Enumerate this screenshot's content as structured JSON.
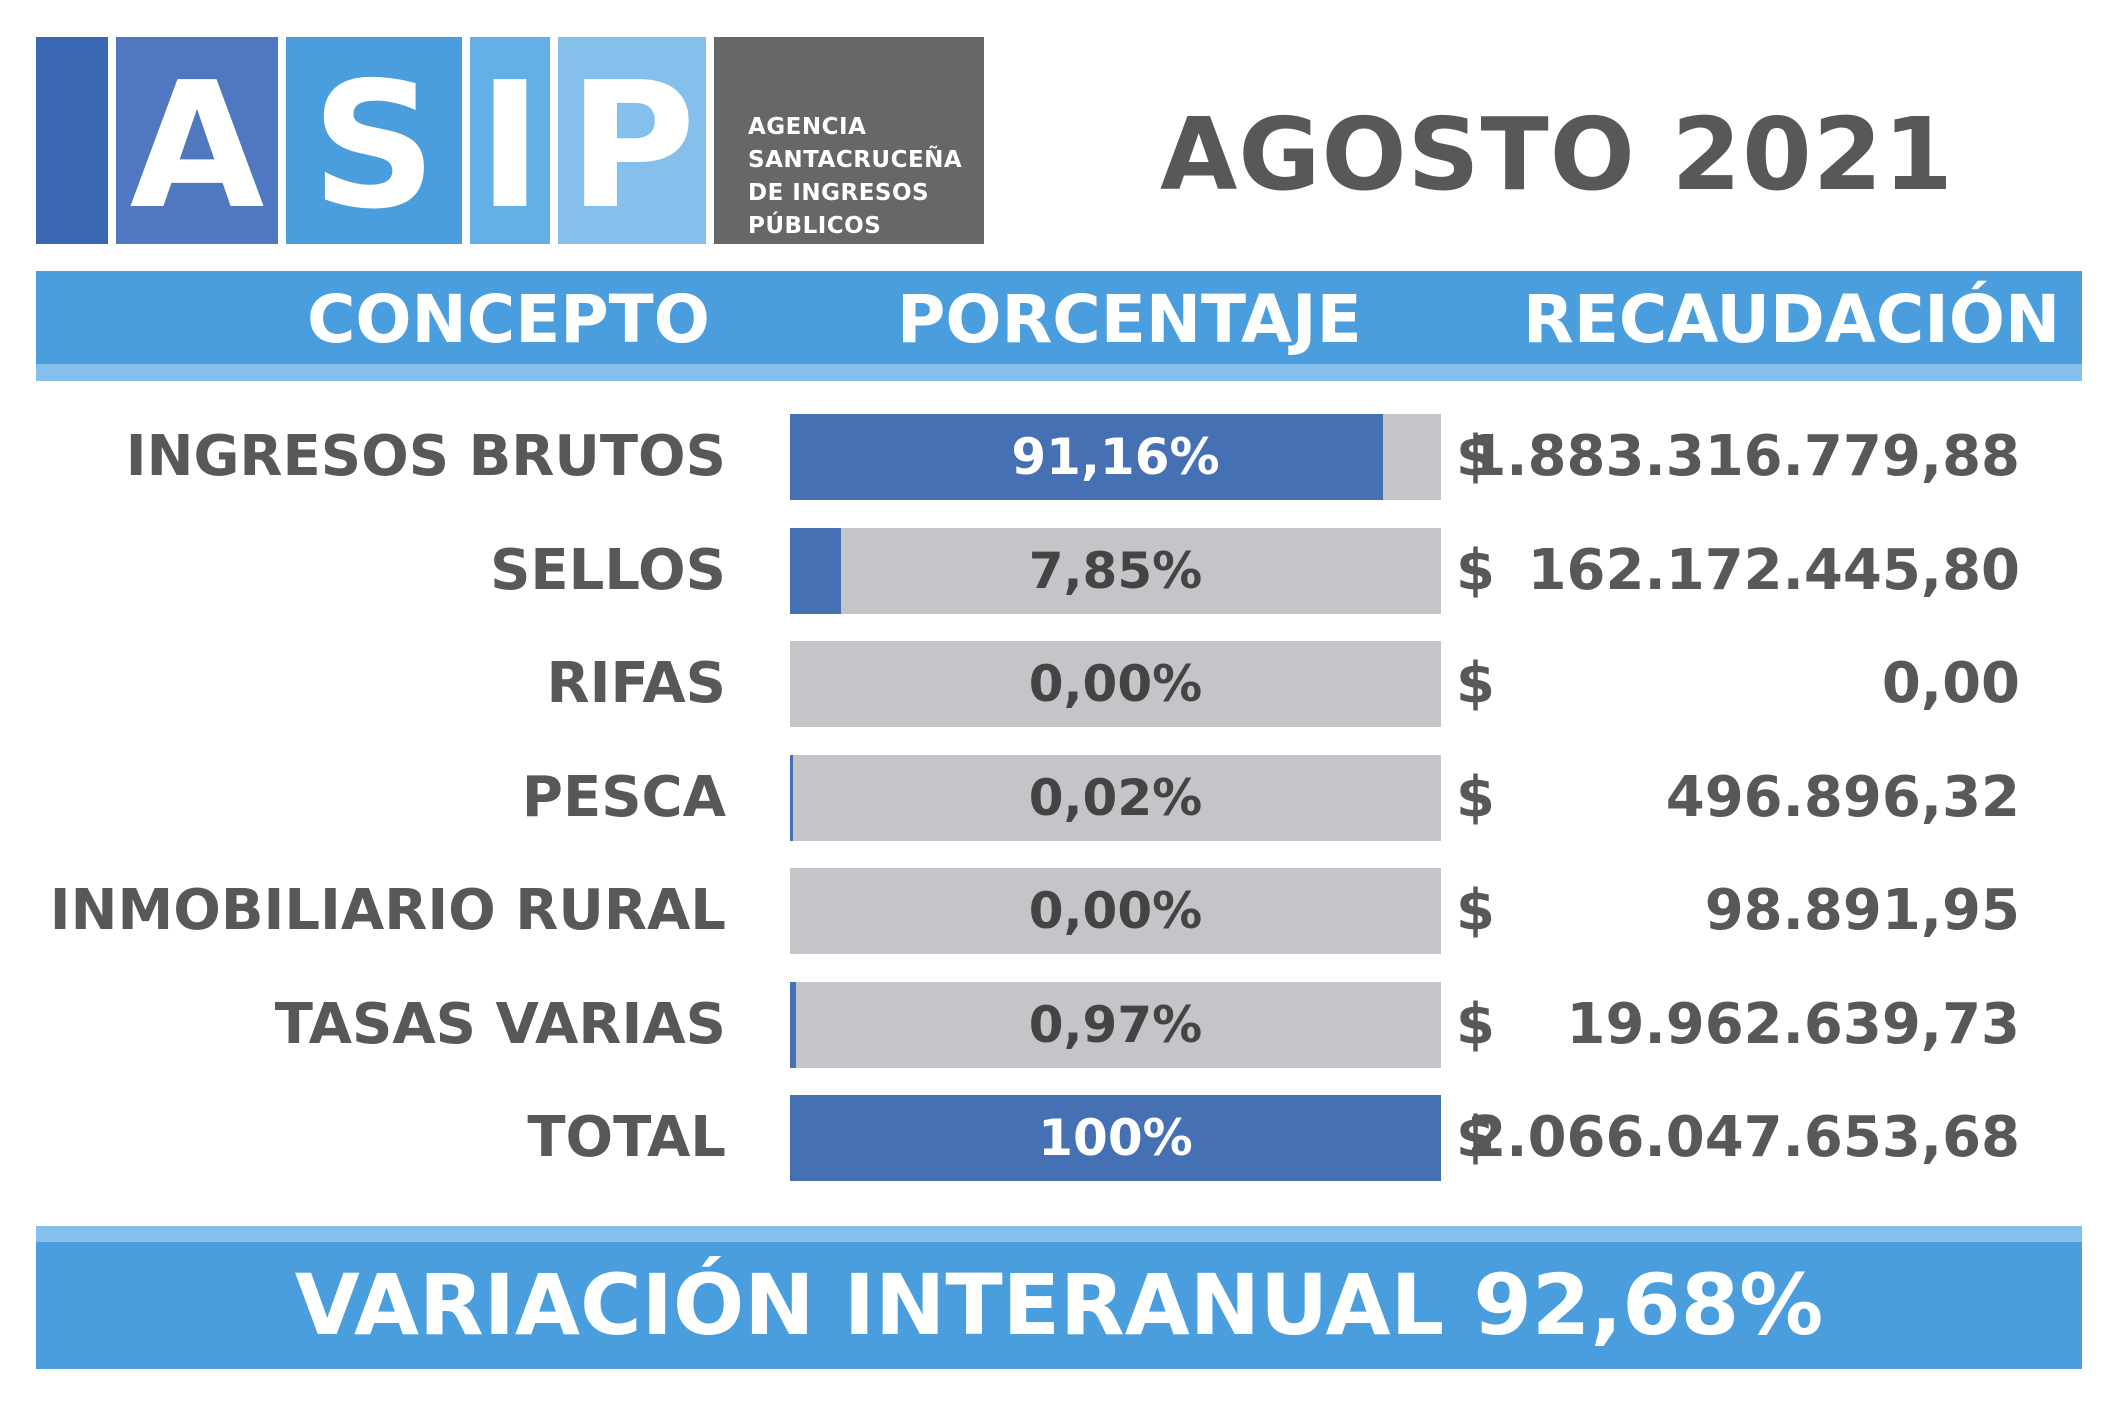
{
  "logo": {
    "letters": [
      "A",
      "S",
      "I",
      "P"
    ],
    "subtitle_lines": [
      "AGENCIA",
      "SANTACRUCEÑA",
      "DE INGRESOS",
      "PÚBLICOS"
    ]
  },
  "period": "AGOSTO 2021",
  "headers": {
    "concepto": "CONCEPTO",
    "porcentaje": "PORCENTAJE",
    "recaudacion": "RECAUDACIÓN"
  },
  "colors": {
    "bar_fill": "#4570b4",
    "bar_track": "#c4c5c9",
    "band": "#4a9ede",
    "band_stripe": "#85c0ec",
    "text_gray": "#585858"
  },
  "chart_data": {
    "type": "bar",
    "categories": [
      "INGRESOS BRUTOS",
      "SELLOS",
      "RIFAS",
      "PESCA",
      "INMOBILIARIO RURAL",
      "TASAS VARIAS",
      "TOTAL"
    ],
    "series": [
      {
        "values": [
          91.16,
          7.85,
          0.0,
          0.02,
          0.0,
          0.97,
          100
        ]
      }
    ],
    "value_labels": [
      "91,16%",
      "7,85%",
      "0,00%",
      "0,02%",
      "0,00%",
      "0,97%",
      "100%"
    ],
    "currency": "$",
    "amounts": [
      "1.883.316.779,88",
      "162.172.445,80",
      "0,00",
      "496.896,32",
      "98.891,95",
      "19.962.639,73",
      "2.066.047.653,68"
    ],
    "ylim": [
      0,
      100
    ]
  },
  "footer": "VARIACIÓN INTERANUAL 92,68%"
}
